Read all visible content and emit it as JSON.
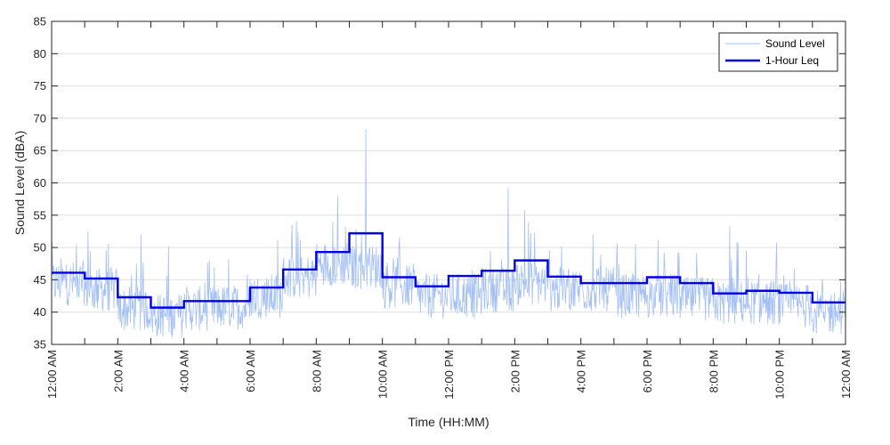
{
  "chart_data": {
    "type": "line",
    "title": "",
    "xlabel": "Time (HH:MM)",
    "ylabel": "Sound Level (dBA)",
    "ylim": [
      35,
      85
    ],
    "y_ticks": [
      35,
      40,
      45,
      50,
      55,
      60,
      65,
      70,
      75,
      80,
      85
    ],
    "x_ticks": [
      "12:00 AM",
      "2:00 AM",
      "4:00 AM",
      "6:00 AM",
      "8:00 AM",
      "10:00 AM",
      "12:00 PM",
      "2:00 PM",
      "4:00 PM",
      "6:00 PM",
      "8:00 PM",
      "10:00 PM",
      "12:00 AM"
    ],
    "x_range_hours": [
      0,
      24
    ],
    "grid": true,
    "legend_position": "top-right",
    "series": [
      {
        "name": "Sound Level",
        "style": "thin line",
        "color": "#a4c0f4",
        "hourly_mean_dBA": [
          44.5,
          43.5,
          40.5,
          39.5,
          40.5,
          40.8,
          42.5,
          45.5,
          47.5,
          47.0,
          44.0,
          42.5,
          42.5,
          43.5,
          44.5,
          43.5,
          43.5,
          42.5,
          42.5,
          42.0,
          41.5,
          41.5,
          41.0,
          40.0
        ],
        "peaks": [
          {
            "hour": 9.5,
            "value": 68.3
          },
          {
            "hour": 13.8,
            "value": 59.3
          },
          {
            "hour": 14.3,
            "value": 55.8
          },
          {
            "hour": 1.1,
            "value": 52.5
          },
          {
            "hour": 2.7,
            "value": 52.0
          },
          {
            "hour": 20.5,
            "value": 53.3
          }
        ]
      },
      {
        "name": "1-Hour Leq",
        "style": "step",
        "color": "#0000ee",
        "hour_start": [
          0,
          1,
          2,
          3,
          4,
          5,
          6,
          7,
          8,
          9,
          10,
          11,
          12,
          13,
          14,
          15,
          16,
          17,
          18,
          19,
          20,
          21,
          22,
          23
        ],
        "values": [
          46.1,
          45.2,
          42.3,
          40.7,
          41.7,
          41.7,
          43.8,
          46.6,
          49.3,
          52.2,
          45.4,
          44.0,
          45.6,
          46.4,
          48.0,
          45.5,
          44.5,
          44.5,
          45.4,
          44.5,
          42.9,
          43.3,
          43.0,
          41.5
        ]
      }
    ]
  }
}
